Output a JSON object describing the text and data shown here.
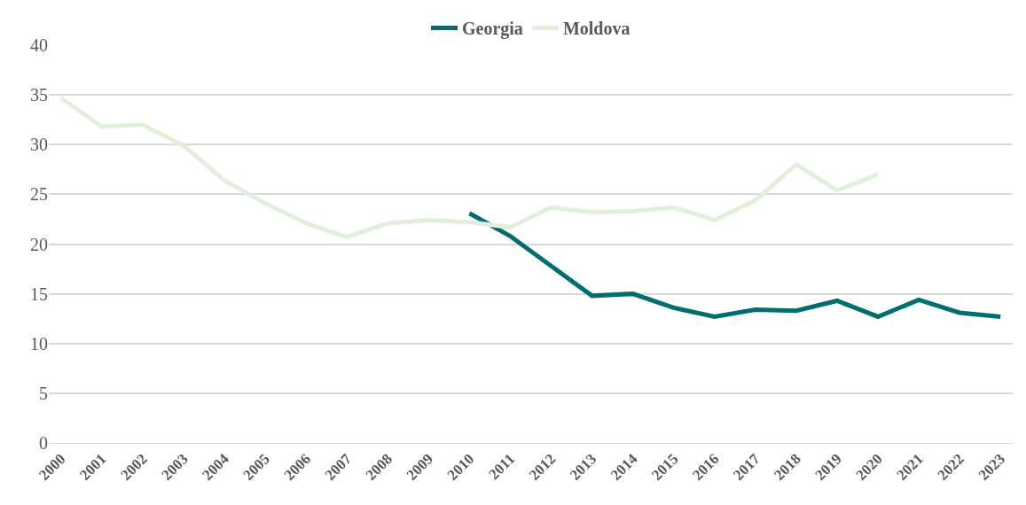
{
  "chart_data": {
    "type": "line",
    "categories": [
      "2000",
      "2001",
      "2002",
      "2003",
      "2004",
      "2005",
      "2006",
      "2007",
      "2008",
      "2009",
      "2010",
      "2011",
      "2012",
      "2013",
      "2014",
      "2015",
      "2016",
      "2017",
      "2018",
      "2019",
      "2020",
      "2021",
      "2022",
      "2023"
    ],
    "series": [
      {
        "name": "Georgia",
        "color": "#006e6e",
        "values": [
          null,
          null,
          null,
          null,
          null,
          null,
          null,
          null,
          null,
          null,
          23.1,
          20.8,
          17.8,
          14.8,
          15.0,
          13.6,
          12.7,
          13.4,
          13.3,
          14.3,
          12.7,
          14.4,
          13.1,
          12.7
        ]
      },
      {
        "name": "Moldova",
        "color": "#e2efda",
        "values": [
          34.7,
          31.8,
          32.0,
          29.9,
          26.4,
          24.1,
          22.1,
          20.7,
          22.1,
          22.4,
          22.2,
          21.7,
          23.7,
          23.2,
          23.3,
          23.7,
          22.4,
          24.4,
          28.0,
          25.4,
          27.0,
          null,
          null,
          null
        ]
      }
    ],
    "ylim": [
      0,
      40
    ],
    "yticks": [
      0,
      5,
      10,
      15,
      20,
      25,
      30,
      35,
      40
    ],
    "grid": "y",
    "legend": "top",
    "marker": "none",
    "line_style": "solid"
  }
}
